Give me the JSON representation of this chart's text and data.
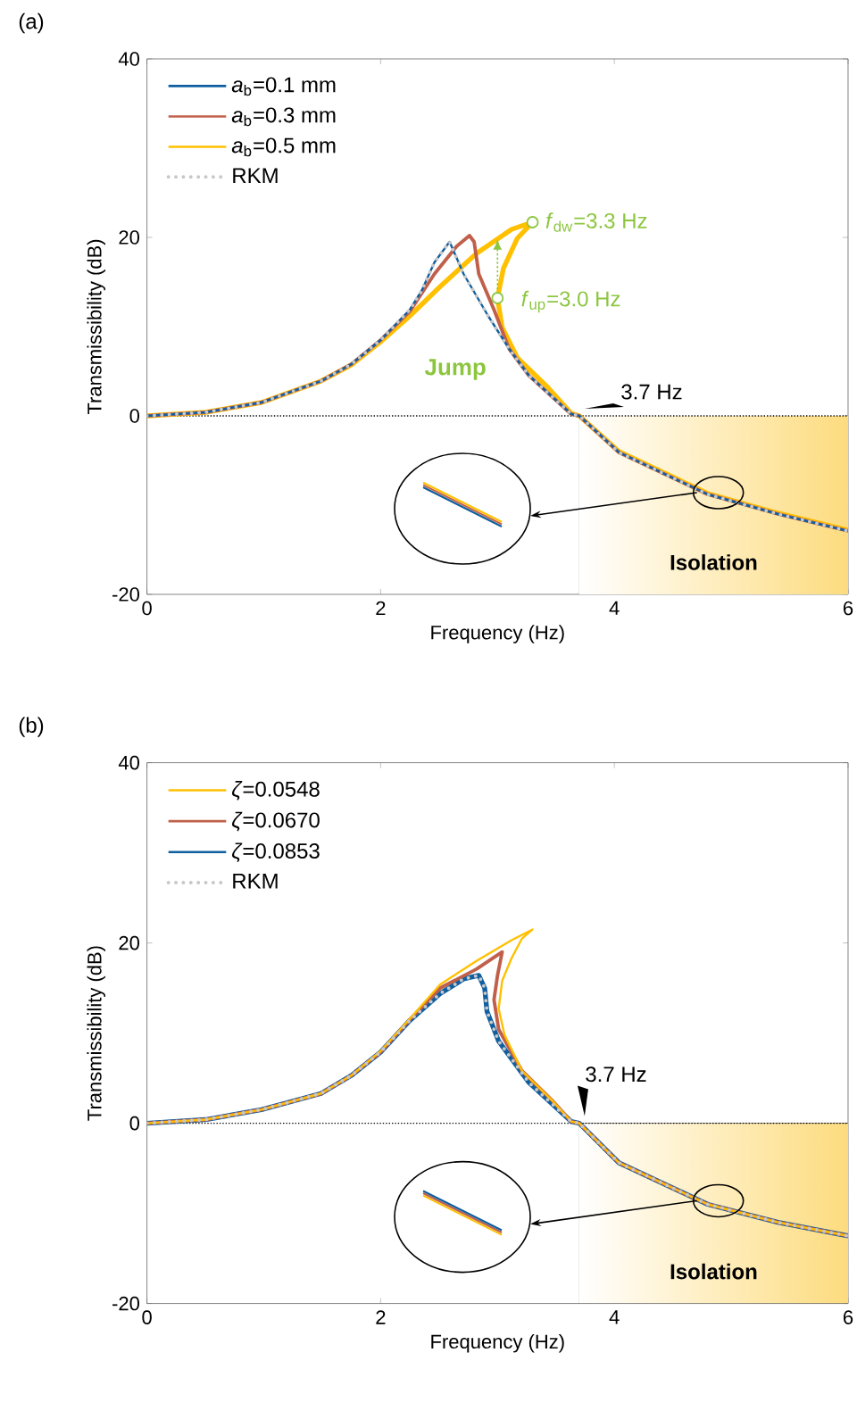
{
  "chart_data": [
    {
      "type": "line",
      "title": "(a)",
      "xlabel": "Frequency (Hz)",
      "ylabel": "Transmissibility (dB)",
      "xlim": [
        0,
        6
      ],
      "ylim": [
        -20,
        40
      ],
      "xticks": [
        0,
        2,
        4,
        6
      ],
      "yticks": [
        -20,
        0,
        20,
        40
      ],
      "grid": false,
      "legend": "top left",
      "series": [
        {
          "name": "*a*$_{b}$=0.1 mm",
          "color": "#0f5fa0",
          "line_style": "solid",
          "x": [
            0,
            0.5,
            0.98,
            1.49,
            1.75,
            2.0,
            2.25,
            2.35,
            2.46,
            2.59,
            2.71,
            2.92,
            3.1,
            3.27,
            3.63,
            3.7,
            4.04,
            4.8,
            5.4,
            6.0
          ],
          "values": [
            0,
            0.4,
            1.5,
            3.9,
            5.8,
            8.5,
            11.9,
            14.0,
            17.2,
            19.5,
            15.9,
            11.2,
            7.5,
            4.5,
            0.2,
            0,
            -4.1,
            -8.8,
            -11.0,
            -12.9
          ]
        },
        {
          "name": "*a*$_{b}$=0.3 mm",
          "color": "#c0604a",
          "line_style": "solid",
          "x": [
            0,
            0.5,
            0.98,
            1.49,
            1.75,
            2.0,
            2.25,
            2.46,
            2.65,
            2.76,
            2.8,
            2.84,
            2.97,
            3.1,
            3.27,
            3.63,
            3.7,
            4.04,
            4.8,
            5.4,
            6.0
          ],
          "values": [
            0,
            0.4,
            1.5,
            3.9,
            5.8,
            8.5,
            11.7,
            15.9,
            19.0,
            20.2,
            19.5,
            15.9,
            11.9,
            7.5,
            4.5,
            0.2,
            0,
            -4.1,
            -8.8,
            -11.0,
            -12.9
          ]
        },
        {
          "name": "*a*$_{b}$=0.5 mm",
          "color": "#ffc000",
          "line_style": "solid",
          "x": [
            0,
            0.5,
            0.98,
            1.49,
            1.75,
            2.0,
            2.25,
            2.51,
            2.82,
            3.12,
            3.3,
            3.17,
            3.05,
            3.0,
            3.04,
            3.17,
            3.43,
            3.63,
            3.7,
            4.04,
            4.8,
            5.4,
            6.0
          ],
          "values": [
            0,
            0.4,
            1.5,
            3.9,
            5.7,
            8.3,
            11.2,
            14.5,
            18.2,
            20.9,
            21.7,
            19.9,
            16.5,
            13.2,
            9.9,
            6.5,
            3.2,
            0.3,
            0,
            -4.0,
            -8.7,
            -10.9,
            -12.8
          ]
        },
        {
          "name": "RKM",
          "color": "#c8c8c8",
          "line_style": "dotted",
          "x": [
            0,
            0.5,
            0.98,
            1.49,
            1.75,
            2.0,
            2.25,
            2.35,
            2.46,
            2.59,
            2.71,
            2.92,
            3.1,
            3.27,
            3.63,
            3.7,
            4.04,
            4.8,
            5.4,
            6.0
          ],
          "values": [
            0,
            0.4,
            1.5,
            3.9,
            5.8,
            8.5,
            11.9,
            14.0,
            17.2,
            19.5,
            15.9,
            11.2,
            7.5,
            4.5,
            0.2,
            0,
            -4.1,
            -8.8,
            -11.0,
            -12.9
          ]
        }
      ],
      "ref_lines": [
        {
          "axis": "y",
          "value": 0,
          "color": "#000000",
          "line_style": "dotted"
        }
      ],
      "bands": [
        {
          "axis": "x",
          "from": 3.7,
          "to": 6,
          "label": "Isolation",
          "color": "#fddc80"
        }
      ],
      "annotations": [
        {
          "text": "*f*$_{dw}$=3.3 Hz",
          "x": 3.3,
          "y": 21.7
        },
        {
          "text": "*f*$_{up}$=3.0 Hz",
          "x": 3.0,
          "y": 13.2
        },
        {
          "text": "3.7 Hz",
          "x": 3.7,
          "y": 0
        },
        "Jump"
      ]
    },
    {
      "type": "line",
      "title": "(b)",
      "xlabel": "Frequency (Hz)",
      "ylabel": "Transmissibility (dB)",
      "xlim": [
        0,
        6
      ],
      "ylim": [
        -20,
        40
      ],
      "xticks": [
        0,
        2,
        4,
        6
      ],
      "yticks": [
        -20,
        0,
        20,
        40
      ],
      "grid": false,
      "legend": "top left",
      "series": [
        {
          "name": "*ζ*=0.0548",
          "color": "#ffc000",
          "line_style": "solid",
          "x": [
            0,
            0.5,
            0.98,
            1.49,
            1.75,
            2.0,
            2.25,
            2.51,
            2.82,
            3.12,
            3.3,
            3.21,
            3.12,
            3.04,
            3.01,
            3.06,
            3.21,
            3.47,
            3.63,
            3.7,
            4.04,
            4.8,
            5.4,
            6.0
          ],
          "values": [
            0,
            0.4,
            1.5,
            3.3,
            5.3,
            8.0,
            11.6,
            15.4,
            18.0,
            20.3,
            21.5,
            20.5,
            18.3,
            15.8,
            12.7,
            9.8,
            5.8,
            2.5,
            0.2,
            0,
            -4.4,
            -9.0,
            -11.0,
            -12.5
          ]
        },
        {
          "name": "*ζ*=0.0670",
          "color": "#c0604a",
          "line_style": "solid",
          "x": [
            0,
            0.5,
            0.98,
            1.49,
            1.75,
            2.0,
            2.25,
            2.51,
            2.82,
            3.04,
            3.0,
            2.97,
            3.01,
            3.21,
            3.47,
            3.63,
            3.7,
            4.04,
            4.8,
            5.4,
            6.0
          ],
          "values": [
            0,
            0.4,
            1.5,
            3.3,
            5.3,
            7.9,
            11.5,
            15.0,
            17.1,
            19.0,
            16.4,
            13.7,
            10.4,
            5.8,
            2.5,
            0.2,
            0,
            -4.4,
            -9.0,
            -11.0,
            -12.5
          ]
        },
        {
          "name": "*ζ*=0.0853",
          "color": "#0f5fa0",
          "line_style": "solid",
          "x": [
            0,
            0.5,
            0.98,
            1.49,
            1.75,
            2.0,
            2.25,
            2.51,
            2.71,
            2.84,
            2.89,
            2.91,
            3.01,
            3.27,
            3.63,
            3.7,
            4.04,
            4.8,
            5.4,
            6.0
          ],
          "values": [
            0,
            0.4,
            1.5,
            3.3,
            5.3,
            7.9,
            11.4,
            14.4,
            16.0,
            16.4,
            15.0,
            12.4,
            9.1,
            4.5,
            0.2,
            0,
            -4.4,
            -9.0,
            -11.0,
            -12.5
          ]
        },
        {
          "name": "RKM",
          "color": "#c8c8c8",
          "line_style": "dotted",
          "x": [
            0,
            0.5,
            0.98,
            1.49,
            1.75,
            2.0,
            2.25,
            2.51,
            2.71,
            2.84,
            2.89,
            2.91,
            3.01,
            3.27,
            3.63,
            3.7,
            4.04,
            4.8,
            5.4,
            6.0
          ],
          "values": [
            0,
            0.4,
            1.5,
            3.3,
            5.3,
            7.9,
            11.4,
            14.4,
            16.0,
            16.4,
            15.0,
            12.4,
            9.1,
            4.5,
            0.2,
            0,
            -4.4,
            -9.0,
            -11.0,
            -12.5
          ]
        }
      ],
      "ref_lines": [
        {
          "axis": "y",
          "value": 0,
          "color": "#000000",
          "line_style": "dotted"
        }
      ],
      "bands": [
        {
          "axis": "x",
          "from": 3.7,
          "to": 6,
          "label": "Isolation",
          "color": "#fddc80"
        }
      ],
      "annotations": [
        {
          "text": "3.7 Hz",
          "x": 3.7,
          "y": 0
        }
      ]
    }
  ]
}
